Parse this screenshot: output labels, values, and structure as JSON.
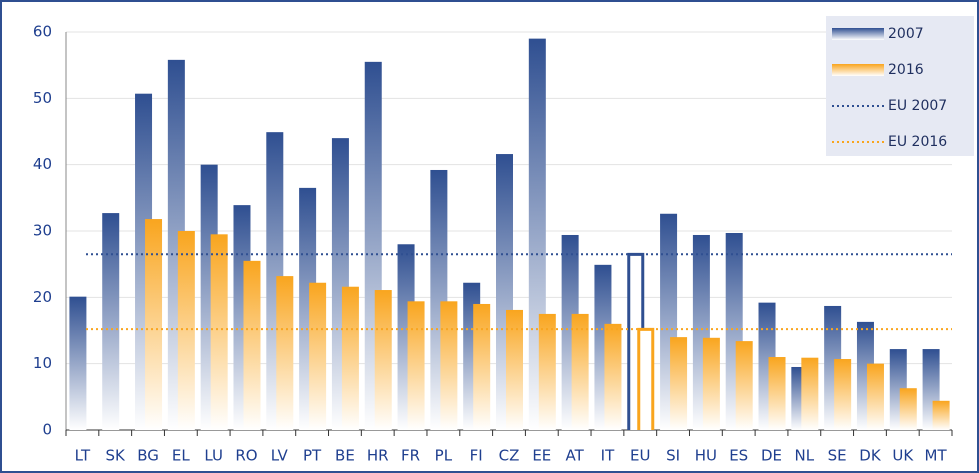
{
  "chart_data": {
    "type": "bar",
    "categories": [
      "LT",
      "SK",
      "BG",
      "EL",
      "LU",
      "RO",
      "LV",
      "PT",
      "BE",
      "HR",
      "FR",
      "PL",
      "FI",
      "CZ",
      "EE",
      "AT",
      "IT",
      "EU",
      "SI",
      "HU",
      "ES",
      "DE",
      "NL",
      "SE",
      "DK",
      "UK",
      "MT"
    ],
    "series": [
      {
        "name": "2007",
        "color": "#2f4f91",
        "values": [
          20.1,
          32.7,
          50.7,
          55.8,
          40,
          33.9,
          44.9,
          36.5,
          44,
          55.5,
          28,
          39.2,
          22.2,
          41.6,
          59,
          29.4,
          24.9,
          26.7,
          32.6,
          29.4,
          29.7,
          19.2,
          9.5,
          18.7,
          16.3,
          12.2,
          12.2
        ]
      },
      {
        "name": "2016",
        "color": "#f9a51e",
        "values": [
          null,
          null,
          31.8,
          30,
          29.5,
          25.5,
          23.2,
          22.2,
          21.6,
          21.1,
          19.4,
          19.4,
          19,
          18.1,
          17.5,
          17.5,
          16,
          15.4,
          14,
          13.9,
          13.4,
          11,
          10.9,
          10.7,
          10,
          6.3,
          4.4
        ]
      }
    ],
    "reference_lines": [
      {
        "name": "EU 2007",
        "value": 26.5,
        "color": "#2f4f91"
      },
      {
        "name": "EU 2016",
        "value": 15.2,
        "color": "#f9a51e"
      }
    ],
    "hollow_category": "EU",
    "ylim": [
      0,
      60
    ],
    "yticks": [
      0,
      10,
      20,
      30,
      40,
      50,
      60
    ],
    "grid": true,
    "legend_position": "top-right"
  }
}
